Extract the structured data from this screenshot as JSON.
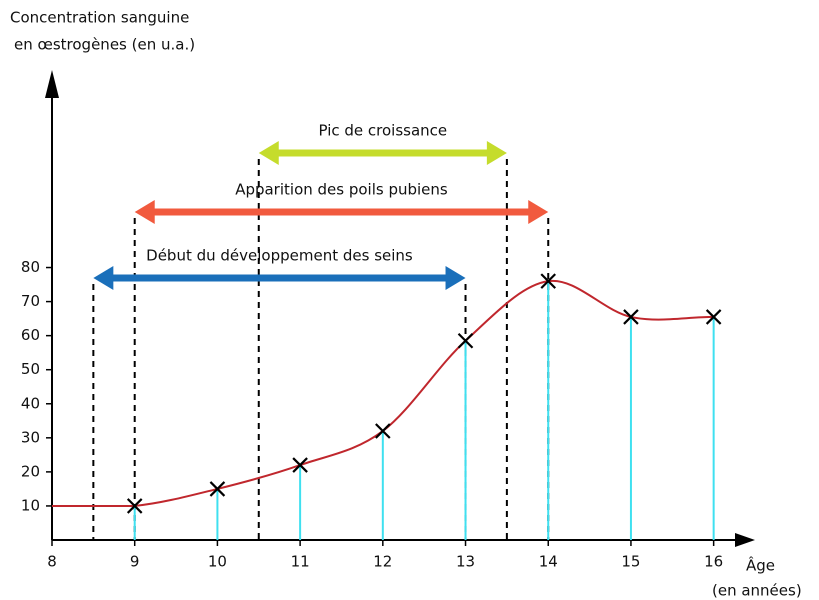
{
  "chart_data": {
    "type": "line",
    "y_label": [
      "Concentration sanguine",
      "en œstrogènes (en u.a.)"
    ],
    "x_label": [
      "Âge",
      "(en années)"
    ],
    "x": [
      9,
      10,
      11,
      12,
      13,
      14,
      15,
      16
    ],
    "series": [
      {
        "color": "#c0272d",
        "stem_color": "#3fe0f0",
        "values": [
          10,
          15,
          22,
          32,
          58.5,
          76,
          65.5,
          65.5
        ]
      }
    ],
    "xlim": [
      8,
      16.5
    ],
    "ylim": [
      0,
      138
    ],
    "xticks": [
      8,
      9,
      10,
      11,
      12,
      13,
      14,
      15,
      16
    ],
    "yticks": [
      10,
      20,
      30,
      40,
      50,
      60,
      70,
      80
    ],
    "intervals": [
      {
        "label": "Pic de croissance",
        "start": 10.5,
        "end": 13.5,
        "color": "#c5dc2c"
      },
      {
        "label": "Apparition des poils pubiens",
        "start": 9,
        "end": 14,
        "color": "#f15a3e"
      },
      {
        "label": "Début du développement des seins",
        "start": 8.5,
        "end": 13,
        "color": "#1a6fba"
      }
    ]
  }
}
